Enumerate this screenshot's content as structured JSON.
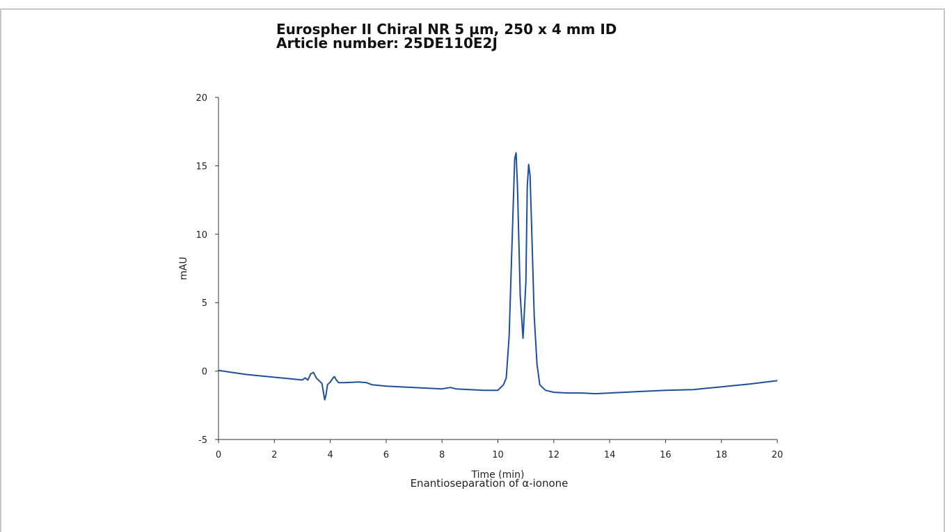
{
  "title_line1": "Eurospher II Chiral NR 5 µm, 250 x 4 mm ID",
  "title_line2": "Article number: 25DE110E2J",
  "caption": "Enantioseparation of α-ionone",
  "colors": {
    "trace": "#1f4e9c",
    "axis": "#333333",
    "frame": "#c8c8c8"
  },
  "chart_data": {
    "type": "line",
    "xlabel": "Time (min)",
    "ylabel": "mAU",
    "xlim": [
      0,
      20
    ],
    "ylim": [
      -5,
      20
    ],
    "x_ticks": [
      "0",
      "2",
      "4",
      "6",
      "8",
      "10",
      "12",
      "14",
      "16",
      "18",
      "20"
    ],
    "y_ticks": [
      "-5",
      "0",
      "5",
      "10",
      "15",
      "20"
    ],
    "grid": false,
    "legend": "none",
    "series": [
      {
        "x": [
          0,
          0.5,
          1,
          1.5,
          2,
          2.5,
          3,
          3.1,
          3.2,
          3.3,
          3.4,
          3.5,
          3.6,
          3.7,
          3.8,
          3.85,
          3.9,
          4.0,
          4.1,
          4.15,
          4.2,
          4.3,
          4.5,
          5,
          5.3,
          5.5,
          6,
          7,
          8,
          8.3,
          8.5,
          9,
          9.5,
          10,
          10.2,
          10.3,
          10.4,
          10.5,
          10.6,
          10.65,
          10.7,
          10.8,
          10.9,
          11.0,
          11.05,
          11.1,
          11.15,
          11.2,
          11.3,
          11.4,
          11.5,
          11.7,
          12,
          12.5,
          13,
          13.5,
          14,
          15,
          16,
          17,
          18,
          19,
          20
        ],
        "y": [
          0.05,
          -0.1,
          -0.25,
          -0.35,
          -0.45,
          -0.55,
          -0.65,
          -0.5,
          -0.65,
          -0.2,
          -0.1,
          -0.5,
          -0.7,
          -0.9,
          -2.1,
          -1.7,
          -1.0,
          -0.8,
          -0.5,
          -0.4,
          -0.6,
          -0.85,
          -0.85,
          -0.8,
          -0.85,
          -1.0,
          -1.1,
          -1.2,
          -1.3,
          -1.2,
          -1.3,
          -1.35,
          -1.4,
          -1.4,
          -1.0,
          -0.5,
          2.5,
          9.0,
          15.5,
          15.95,
          13.5,
          5.5,
          2.4,
          6.5,
          13.5,
          15.1,
          14.3,
          11.0,
          4.0,
          0.5,
          -1.0,
          -1.4,
          -1.55,
          -1.6,
          -1.6,
          -1.65,
          -1.6,
          -1.5,
          -1.4,
          -1.35,
          -1.15,
          -0.95,
          -0.7
        ]
      }
    ]
  }
}
